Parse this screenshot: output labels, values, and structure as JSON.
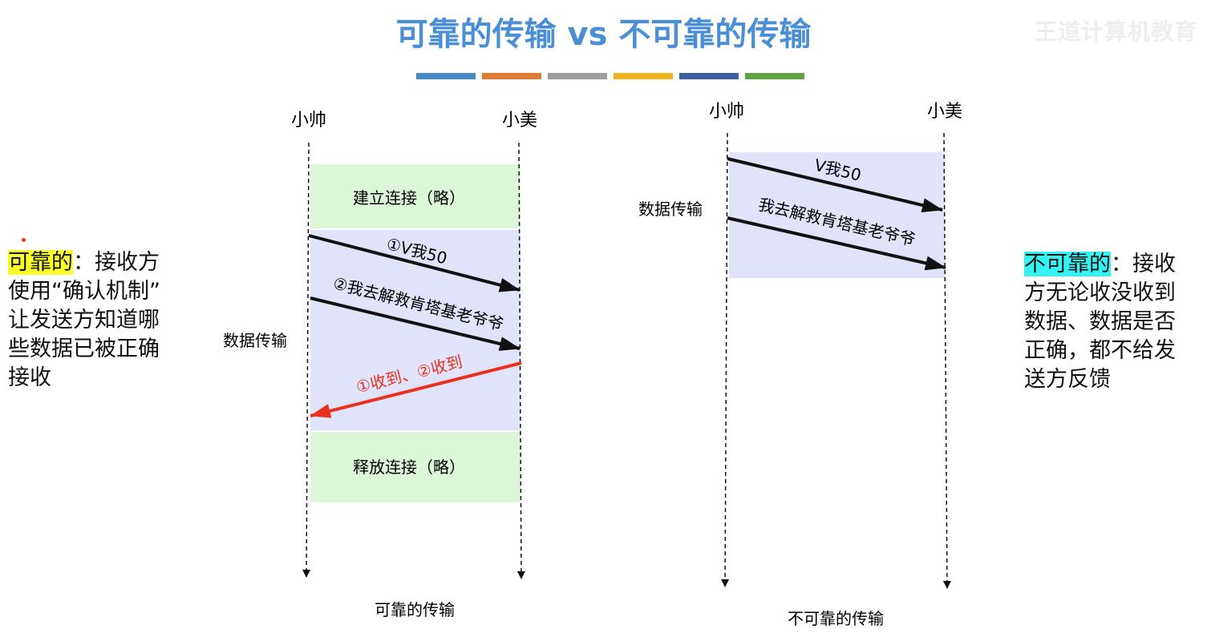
{
  "title": "可靠的传输 vs 不可靠的传输",
  "watermark": "王道计算机教育",
  "color_bars": [
    "#4a89c8",
    "#e07b34",
    "#9e9e9e",
    "#f0b520",
    "#3c5fa8",
    "#5ea445"
  ],
  "left": {
    "sender": "小帅",
    "receiver": "小美",
    "connect_box": "建立连接（略）",
    "data_label": "数据传输",
    "msg1": "①V我50",
    "msg2": "②我去解救肯塔基老爷爷",
    "ack": "①收到、②收到",
    "release_box": "释放连接（略）",
    "caption": "可靠的传输"
  },
  "right": {
    "sender": "小帅",
    "receiver": "小美",
    "data_label": "数据传输",
    "msg1": "V我50",
    "msg2": "我去解救肯塔基老爷爷",
    "caption": "不可靠的传输"
  },
  "reliable_note": {
    "term": "可靠的",
    "line1": "：接收方",
    "line2": "使用“确认机制”",
    "line3": "让发送方知道哪",
    "line4": "些数据已被正确",
    "line5": "接收"
  },
  "unreliable_note": {
    "term": "不可靠的",
    "line1": "：接收",
    "line2": "方无论收没收到",
    "line3": "数据、数据是否",
    "line4": "正确，都不给发",
    "line5": "送方反馈"
  },
  "colors": {
    "title": "#4a8fd6",
    "connect_fill": "#dcf7d8",
    "data_fill": "#e0e3f9",
    "ack_arrow": "#e8321e"
  }
}
